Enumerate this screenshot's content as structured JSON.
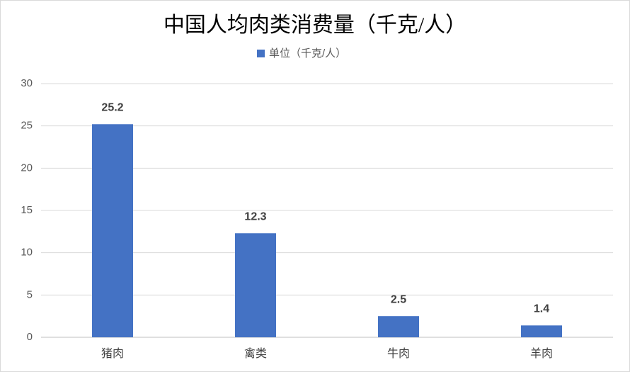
{
  "chart_data": {
    "type": "bar",
    "title": "中国人均肉类消费量（千克/人）",
    "categories": [
      "猪肉",
      "禽类",
      "牛肉",
      "羊肉"
    ],
    "series": [
      {
        "name": "单位（千克/人）",
        "color": "#4472c4",
        "values": [
          25.2,
          12.3,
          2.5,
          1.4
        ]
      }
    ],
    "ylim": [
      0,
      30
    ],
    "yticks": [
      0,
      5,
      10,
      15,
      20,
      25,
      30
    ],
    "grid": true,
    "legend": "top"
  }
}
